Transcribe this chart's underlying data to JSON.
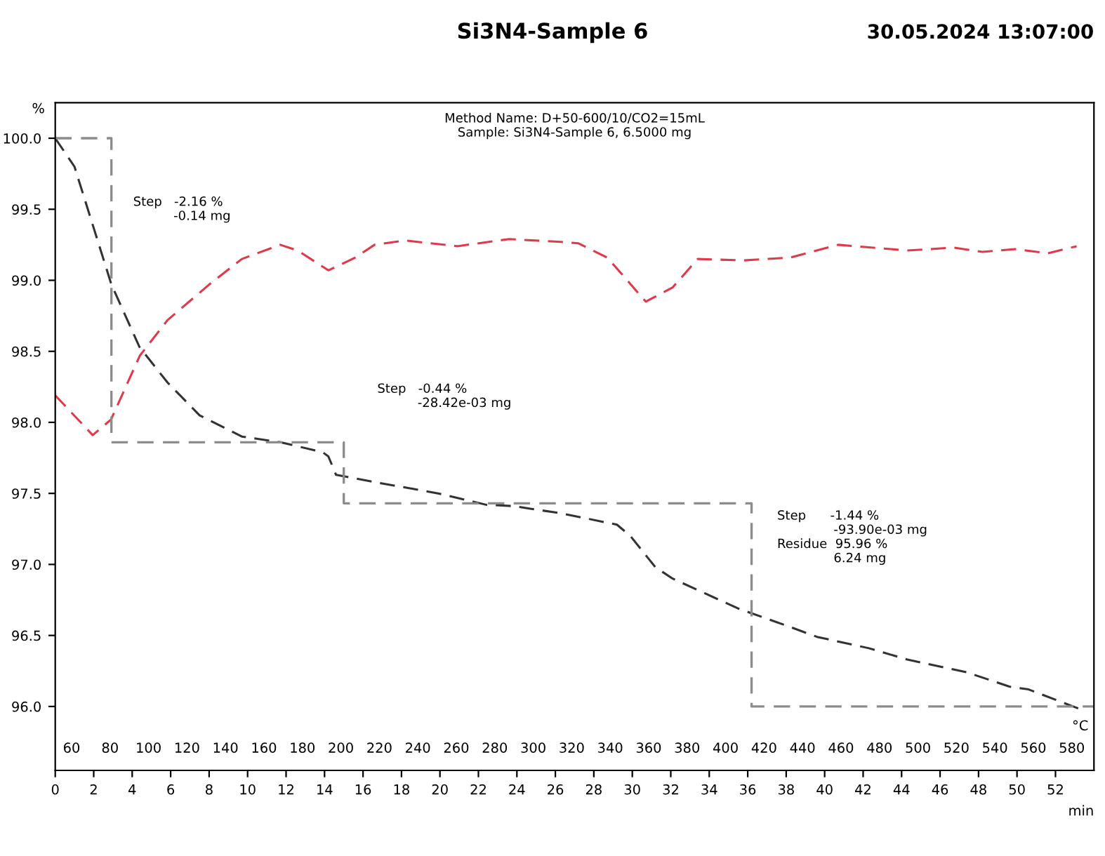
{
  "chart_data": {
    "type": "line",
    "title": "Si3N4-Sample 6",
    "subtitle": "Method Name: D+50-600/10/CO2=15mL\nSample: Si3N4-Sample 6, 6.5000 mg",
    "ylabel": "%",
    "xlabel": "min",
    "x2label": "°C",
    "xlim": [
      0,
      54
    ],
    "xticks": [
      0,
      2,
      4,
      6,
      8,
      10,
      12,
      14,
      16,
      18,
      20,
      22,
      24,
      26,
      28,
      30,
      32,
      34,
      36,
      38,
      40,
      42,
      44,
      46,
      48,
      50,
      52
    ],
    "x2lim": [
      51.5,
      591.5
    ],
    "x2ticks": [
      60,
      80,
      100,
      120,
      140,
      160,
      180,
      200,
      220,
      240,
      260,
      280,
      300,
      320,
      340,
      360,
      380,
      400,
      420,
      440,
      460,
      480,
      500,
      520,
      540,
      560,
      580
    ],
    "ylim": [
      95.55,
      100.25
    ],
    "yticks": [
      {
        "value": 96.0,
        "label": "96.0"
      },
      {
        "value": 96.5,
        "label": "96.5"
      },
      {
        "value": 97.0,
        "label": "97.0"
      },
      {
        "value": 97.5,
        "label": "97.5"
      },
      {
        "value": 98.0,
        "label": "98.0"
      },
      {
        "value": 98.5,
        "label": "98.5"
      },
      {
        "value": 99.0,
        "label": "99.0"
      },
      {
        "value": 99.5,
        "label": "99.5"
      },
      {
        "value": 100.0,
        "label": "100.0"
      }
    ],
    "grid": false,
    "line_style": "dashed",
    "marker": "none",
    "series": [
      {
        "color": "#333333",
        "x": [
          0,
          1,
          2.92,
          4.38,
          5.84,
          7.5,
          9.7,
          11.7,
          13.9,
          14.2,
          14.6,
          16.6,
          19.9,
          22.4,
          23.9,
          24.8,
          26.3,
          29.2,
          29.9,
          31.2,
          32.1,
          35.5,
          38.0,
          39.6,
          42.3,
          44.3,
          47.4,
          49.6,
          50.6,
          53.3
        ],
        "values": [
          100.0,
          99.8,
          98.97,
          98.53,
          98.28,
          98.05,
          97.9,
          97.86,
          97.79,
          97.76,
          97.63,
          97.58,
          97.5,
          97.42,
          97.41,
          97.39,
          97.36,
          97.28,
          97.2,
          96.98,
          96.9,
          96.69,
          96.57,
          96.49,
          96.41,
          96.33,
          96.24,
          96.14,
          96.12,
          95.98
        ]
      },
      {
        "color": "#e0394a",
        "x": [
          0,
          1.95,
          2.9,
          4.4,
          5.84,
          8.0,
          9.7,
          11.7,
          12.6,
          14.2,
          15.6,
          16.6,
          18.2,
          20.9,
          23.6,
          26.3,
          27.2,
          28.7,
          30.7,
          32.1,
          33.4,
          35.8,
          38.2,
          40.7,
          44.3,
          46.7,
          48.2,
          49.9,
          51.6,
          53.1
        ],
        "values": [
          98.19,
          97.91,
          98.02,
          98.47,
          98.72,
          98.97,
          99.15,
          99.25,
          99.21,
          99.07,
          99.16,
          99.25,
          99.28,
          99.24,
          99.29,
          99.27,
          99.26,
          99.16,
          98.85,
          98.95,
          99.15,
          99.14,
          99.16,
          99.25,
          99.21,
          99.23,
          99.2,
          99.22,
          99.19,
          99.24
        ]
      },
      {
        "color": "#8c8c8c",
        "type": "step",
        "x": [
          0,
          2.92,
          15.0,
          36.2,
          54
        ],
        "values": [
          100.0,
          97.86,
          97.43,
          96.0,
          96.0
        ]
      }
    ],
    "annotations": [
      "30.05.2024 13:07:00",
      "Step   -2.16 %\n          -0.14 mg",
      "Step   -0.44 %\n          -28.42e-03 mg",
      "Step      -1.44 %\n              -93.90e-03 mg\nResidue  95.96 %\n              6.24 mg"
    ]
  }
}
